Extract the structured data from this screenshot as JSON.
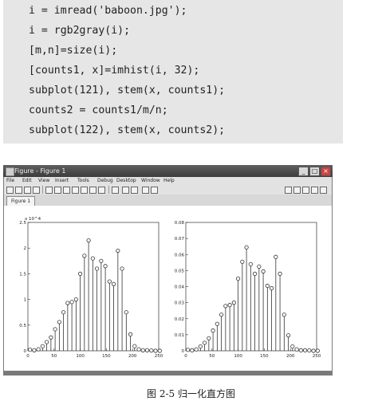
{
  "code": {
    "lines": [
      "i = imread('baboon.jpg');",
      "i = rgb2gray(i);",
      "[m,n]=size(i);",
      "[counts1, x]=imhist(i, 32);",
      "subplot(121), stem(x, counts1);",
      "counts2 = counts1/m/n;",
      "subplot(122), stem(x, counts2);"
    ]
  },
  "window": {
    "title": "Figure - Figure 1",
    "menu": [
      "File",
      "Edit",
      "View",
      "Insert",
      "Tools",
      "Debug",
      "Desktop",
      "Window",
      "Help"
    ],
    "tab": "Figure 1",
    "buttons": {
      "minimize": "_",
      "maximize": "□",
      "close": "×"
    }
  },
  "chart_data": [
    {
      "type": "stem",
      "x": [
        4,
        12,
        20,
        28,
        36,
        44,
        52,
        60,
        68,
        76,
        84,
        92,
        100,
        108,
        116,
        124,
        132,
        140,
        148,
        156,
        164,
        172,
        180,
        188,
        196,
        204,
        212,
        220,
        228,
        236,
        244,
        252
      ],
      "values": [
        200,
        100,
        300,
        900,
        1700,
        2600,
        4200,
        5600,
        7500,
        9300,
        9500,
        10000,
        15000,
        18500,
        21500,
        18000,
        16000,
        17500,
        16500,
        13500,
        13000,
        19500,
        16000,
        7500,
        3200,
        900,
        300,
        100,
        100,
        50,
        0,
        0
      ],
      "exponent_label": "x 10^4",
      "xlim": [
        0,
        250
      ],
      "ylim": [
        0,
        25000
      ],
      "xticks": [
        "0",
        "50",
        "100",
        "150",
        "200",
        "250"
      ],
      "yticks": [
        "0",
        "0.5",
        "1",
        "1.5",
        "2",
        "2.5"
      ]
    },
    {
      "type": "stem",
      "x": [
        4,
        12,
        20,
        28,
        36,
        44,
        52,
        60,
        68,
        76,
        84,
        92,
        100,
        108,
        116,
        124,
        132,
        140,
        148,
        156,
        164,
        172,
        180,
        188,
        196,
        204,
        212,
        220,
        228,
        236,
        244,
        252
      ],
      "values": [
        0.0006,
        0.0003,
        0.0009,
        0.0027,
        0.005,
        0.0078,
        0.0126,
        0.0168,
        0.0225,
        0.0279,
        0.0285,
        0.03,
        0.045,
        0.0555,
        0.0645,
        0.054,
        0.048,
        0.0525,
        0.0495,
        0.0405,
        0.039,
        0.0585,
        0.048,
        0.0225,
        0.0096,
        0.0027,
        0.0009,
        0.0003,
        0.0003,
        0.0002,
        0,
        0
      ],
      "xlim": [
        0,
        250
      ],
      "ylim": [
        0,
        0.08
      ],
      "xticks": [
        "0",
        "50",
        "100",
        "150",
        "200",
        "250"
      ],
      "yticks": [
        "0",
        "0.01",
        "0.02",
        "0.03",
        "0.04",
        "0.05",
        "0.06",
        "0.07",
        "0.08"
      ]
    }
  ],
  "caption": "图 2-5   归一化直方图"
}
